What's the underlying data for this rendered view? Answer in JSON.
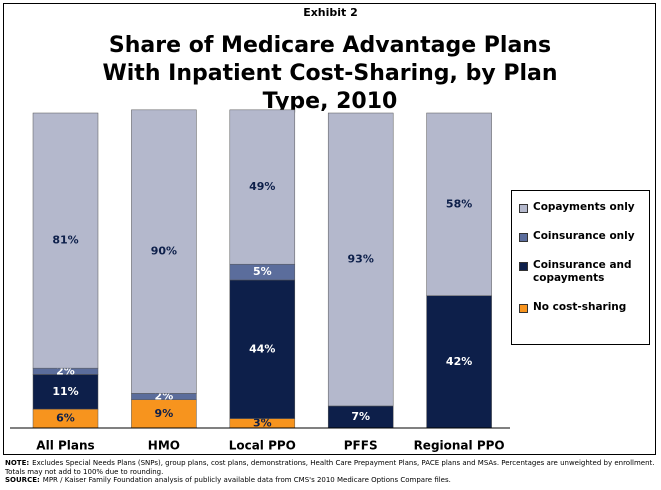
{
  "chart_data": {
    "type": "stacked_bar",
    "supertitle": "Exhibit 2",
    "title": "Share of Medicare Advantage Plans With Inpatient Cost-Sharing, by Plan Type, 2010",
    "categories": [
      "All Plans",
      "HMO",
      "Local PPO",
      "PFFS",
      "Regional PPO"
    ],
    "series": [
      {
        "name": "No cost-sharing",
        "color": "#f7941e",
        "label_color": "#0d1f4a",
        "values": [
          6,
          9,
          3,
          null,
          null
        ],
        "value_labels": [
          "6%",
          "9%",
          "3%",
          null,
          null
        ]
      },
      {
        "name": "Coinsurance and copayments",
        "color": "#0d1f4a",
        "label_color": "#ffffff",
        "values": [
          11,
          null,
          44,
          7,
          42
        ],
        "value_labels": [
          "11%",
          null,
          "44%",
          "7%",
          "42%"
        ]
      },
      {
        "name": "Coinsurance only",
        "color": "#5b6d9c",
        "label_color": "#ffffff",
        "values": [
          2,
          2,
          5,
          null,
          null
        ],
        "value_labels": [
          "2%",
          "2%",
          "5%",
          null,
          null
        ]
      },
      {
        "name": "Copayments only",
        "color": "#b4b8cc",
        "label_color": "#0d1f4a",
        "values": [
          81,
          90,
          49,
          93,
          58
        ],
        "value_labels": [
          "81%",
          "90%",
          "49%",
          "93%",
          "58%"
        ]
      }
    ],
    "ylim": [
      0,
      100
    ],
    "legend": "right"
  },
  "notes": [
    {
      "label": "NOTE:",
      "text": "Excludes Special Needs Plans (SNPs), group plans, cost plans, demonstrations, Health Care Prepayment Plans, PACE plans and MSAs.  Percentages are unweighted by enrollment. Totals may not add to 100% due to rounding."
    },
    {
      "label": "SOURCE:",
      "text": "MPR / Kaiser Family Foundation analysis of publicly available data from CMS's 2010 Medicare Options Compare files."
    }
  ]
}
